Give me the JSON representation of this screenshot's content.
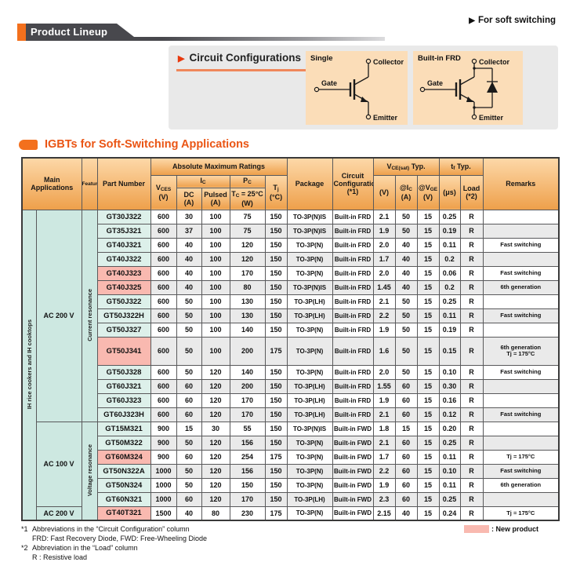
{
  "banner": {
    "title": "Product Lineup",
    "top_right": "For soft switching",
    "accent_color": "#f3701d",
    "bar_color": "#48484d"
  },
  "circuit_section": {
    "title": "Circuit Configurations",
    "diagrams": [
      {
        "label": "Single",
        "collector": "Collector",
        "gate": "Gate",
        "emitter": "Emitter"
      },
      {
        "label": "Built-in FRD",
        "collector": "Collector",
        "gate": "Gate",
        "emitter": "Emitter"
      }
    ]
  },
  "sections": {
    "igbt_table_title": "IGBTs for Soft-Switching Applications"
  },
  "table": {
    "headers": {
      "main_applications": "Main\nApplications",
      "features": "Features",
      "part_number": "Part Number",
      "abs_max_ratings": "Absolute Maximum Ratings",
      "package": "Package",
      "circuit_config": "Circuit\nConfiguration\n(*1)",
      "remarks": "Remarks",
      "vces": {
        "base": "V",
        "sub": "CES",
        "unit": "(V)"
      },
      "ic_group": {
        "base": "I",
        "sub": "C"
      },
      "ic_dc": {
        "line1": "DC",
        "unit": "(A)"
      },
      "ic_pulsed": {
        "line1": "Pulsed",
        "unit": "(A)"
      },
      "pc_group": {
        "base": "P",
        "sub": "C"
      },
      "pc_cond": {
        "base": "T",
        "sub": "C",
        "rest": " = 25°C",
        "unit": "(W)"
      },
      "tj": {
        "base": "T",
        "sub": "j",
        "unit": "(°C)"
      },
      "vce_sat": {
        "base": "V",
        "sub": "CE(sat)",
        "rest": " Typ."
      },
      "vce_v": "(V)",
      "at_ic": {
        "base": "@I",
        "sub": "C",
        "unit": "(A)"
      },
      "at_vge": {
        "base": "@V",
        "sub": "GE",
        "unit": "(V)"
      },
      "tf": {
        "base": "t",
        "sub": "f",
        "rest": " Typ."
      },
      "tf_us": "(μs)",
      "load": {
        "line1": "Load",
        "line2": "(*2)"
      }
    },
    "groups": {
      "application": "IH rice cookers and IH cooktops",
      "sections": [
        {
          "voltage": "AC 200 V",
          "feature": "Current resonance",
          "rows": 14,
          "feature_rows": 14
        },
        {
          "voltage": "AC 100 V",
          "feature": "Voltage resonance",
          "rows": 6,
          "feature_rows": 7
        },
        {
          "voltage": "AC 200 V",
          "feature": null,
          "rows": 1
        }
      ]
    },
    "rows": [
      {
        "part": "GT30J322",
        "new": false,
        "tall": false,
        "vces": "600",
        "dc": "30",
        "pulsed": "100",
        "pc": "75",
        "tj": "150",
        "pkg": "TO-3P(N)IS",
        "cfg": "Built-in FRD",
        "vce": "2.1",
        "ic": "50",
        "vge": "15",
        "tf": "0.25",
        "load": "R",
        "rem": ""
      },
      {
        "part": "GT35J321",
        "new": false,
        "tall": false,
        "vces": "600",
        "dc": "37",
        "pulsed": "100",
        "pc": "75",
        "tj": "150",
        "pkg": "TO-3P(N)IS",
        "cfg": "Built-in FRD",
        "vce": "1.9",
        "ic": "50",
        "vge": "15",
        "tf": "0.19",
        "load": "R",
        "rem": ""
      },
      {
        "part": "GT40J321",
        "new": false,
        "tall": false,
        "vces": "600",
        "dc": "40",
        "pulsed": "100",
        "pc": "120",
        "tj": "150",
        "pkg": "TO-3P(N)",
        "cfg": "Built-in FRD",
        "vce": "2.0",
        "ic": "40",
        "vge": "15",
        "tf": "0.11",
        "load": "R",
        "rem": "Fast switching"
      },
      {
        "part": "GT40J322",
        "new": false,
        "tall": false,
        "vces": "600",
        "dc": "40",
        "pulsed": "100",
        "pc": "120",
        "tj": "150",
        "pkg": "TO-3P(N)",
        "cfg": "Built-in FRD",
        "vce": "1.7",
        "ic": "40",
        "vge": "15",
        "tf": "0.2",
        "load": "R",
        "rem": ""
      },
      {
        "part": "GT40J323",
        "new": true,
        "tall": false,
        "vces": "600",
        "dc": "40",
        "pulsed": "100",
        "pc": "170",
        "tj": "150",
        "pkg": "TO-3P(N)",
        "cfg": "Built-in FRD",
        "vce": "2.0",
        "ic": "40",
        "vge": "15",
        "tf": "0.06",
        "load": "R",
        "rem": "Fast switching"
      },
      {
        "part": "GT40J325",
        "new": true,
        "tall": false,
        "vces": "600",
        "dc": "40",
        "pulsed": "100",
        "pc": "80",
        "tj": "150",
        "pkg": "TO-3P(N)IS",
        "cfg": "Built-in FRD",
        "vce": "1.45",
        "ic": "40",
        "vge": "15",
        "tf": "0.2",
        "load": "R",
        "rem": "6th generation"
      },
      {
        "part": "GT50J322",
        "new": false,
        "tall": false,
        "vces": "600",
        "dc": "50",
        "pulsed": "100",
        "pc": "130",
        "tj": "150",
        "pkg": "TO-3P(LH)",
        "cfg": "Built-in FRD",
        "vce": "2.1",
        "ic": "50",
        "vge": "15",
        "tf": "0.25",
        "load": "R",
        "rem": ""
      },
      {
        "part": "GT50J322H",
        "new": false,
        "tall": false,
        "vces": "600",
        "dc": "50",
        "pulsed": "100",
        "pc": "130",
        "tj": "150",
        "pkg": "TO-3P(LH)",
        "cfg": "Built-in FRD",
        "vce": "2.2",
        "ic": "50",
        "vge": "15",
        "tf": "0.11",
        "load": "R",
        "rem": "Fast switching"
      },
      {
        "part": "GT50J327",
        "new": false,
        "tall": false,
        "vces": "600",
        "dc": "50",
        "pulsed": "100",
        "pc": "140",
        "tj": "150",
        "pkg": "TO-3P(N)",
        "cfg": "Built-in FRD",
        "vce": "1.9",
        "ic": "50",
        "vge": "15",
        "tf": "0.19",
        "load": "R",
        "rem": ""
      },
      {
        "part": "GT50J341",
        "new": true,
        "tall": true,
        "vces": "600",
        "dc": "50",
        "pulsed": "100",
        "pc": "200",
        "tj": "175",
        "pkg": "TO-3P(N)",
        "cfg": "Built-in FRD",
        "vce": "1.6",
        "ic": "50",
        "vge": "15",
        "tf": "0.15",
        "load": "R",
        "rem": "6th generation\nTj = 175°C"
      },
      {
        "part": "GT50J328",
        "new": false,
        "tall": false,
        "vces": "600",
        "dc": "50",
        "pulsed": "120",
        "pc": "140",
        "tj": "150",
        "pkg": "TO-3P(N)",
        "cfg": "Built-in FRD",
        "vce": "2.0",
        "ic": "50",
        "vge": "15",
        "tf": "0.10",
        "load": "R",
        "rem": "Fast switching"
      },
      {
        "part": "GT60J321",
        "new": false,
        "tall": false,
        "vces": "600",
        "dc": "60",
        "pulsed": "120",
        "pc": "200",
        "tj": "150",
        "pkg": "TO-3P(LH)",
        "cfg": "Built-in FRD",
        "vce": "1.55",
        "ic": "60",
        "vge": "15",
        "tf": "0.30",
        "load": "R",
        "rem": ""
      },
      {
        "part": "GT60J323",
        "new": false,
        "tall": false,
        "vces": "600",
        "dc": "60",
        "pulsed": "120",
        "pc": "170",
        "tj": "150",
        "pkg": "TO-3P(LH)",
        "cfg": "Built-in FRD",
        "vce": "1.9",
        "ic": "60",
        "vge": "15",
        "tf": "0.16",
        "load": "R",
        "rem": ""
      },
      {
        "part": "GT60J323H",
        "new": false,
        "tall": false,
        "vces": "600",
        "dc": "60",
        "pulsed": "120",
        "pc": "170",
        "tj": "150",
        "pkg": "TO-3P(LH)",
        "cfg": "Built-in FRD",
        "vce": "2.1",
        "ic": "60",
        "vge": "15",
        "tf": "0.12",
        "load": "R",
        "rem": "Fast switching"
      },
      {
        "part": "GT15M321",
        "new": false,
        "tall": false,
        "vces": "900",
        "dc": "15",
        "pulsed": "30",
        "pc": "55",
        "tj": "150",
        "pkg": "TO-3P(N)IS",
        "cfg": "Built-in FWD",
        "vce": "1.8",
        "ic": "15",
        "vge": "15",
        "tf": "0.20",
        "load": "R",
        "rem": ""
      },
      {
        "part": "GT50M322",
        "new": false,
        "tall": false,
        "vces": "900",
        "dc": "50",
        "pulsed": "120",
        "pc": "156",
        "tj": "150",
        "pkg": "TO-3P(N)",
        "cfg": "Built-in FWD",
        "vce": "2.1",
        "ic": "60",
        "vge": "15",
        "tf": "0.25",
        "load": "R",
        "rem": ""
      },
      {
        "part": "GT60M324",
        "new": true,
        "tall": false,
        "vces": "900",
        "dc": "60",
        "pulsed": "120",
        "pc": "254",
        "tj": "175",
        "pkg": "TO-3P(N)",
        "cfg": "Built-in FWD",
        "vce": "1.7",
        "ic": "60",
        "vge": "15",
        "tf": "0.11",
        "load": "R",
        "rem": "Tj = 175°C"
      },
      {
        "part": "GT50N322A",
        "new": false,
        "tall": false,
        "vces": "1000",
        "dc": "50",
        "pulsed": "120",
        "pc": "156",
        "tj": "150",
        "pkg": "TO-3P(N)",
        "cfg": "Built-in FWD",
        "vce": "2.2",
        "ic": "60",
        "vge": "15",
        "tf": "0.10",
        "load": "R",
        "rem": "Fast switching"
      },
      {
        "part": "GT50N324",
        "new": false,
        "tall": false,
        "vces": "1000",
        "dc": "50",
        "pulsed": "120",
        "pc": "150",
        "tj": "150",
        "pkg": "TO-3P(N)",
        "cfg": "Built-in FWD",
        "vce": "1.9",
        "ic": "60",
        "vge": "15",
        "tf": "0.11",
        "load": "R",
        "rem": "6th generation"
      },
      {
        "part": "GT60N321",
        "new": false,
        "tall": false,
        "vces": "1000",
        "dc": "60",
        "pulsed": "120",
        "pc": "170",
        "tj": "150",
        "pkg": "TO-3P(LH)",
        "cfg": "Built-in FWD",
        "vce": "2.3",
        "ic": "60",
        "vge": "15",
        "tf": "0.25",
        "load": "R",
        "rem": ""
      },
      {
        "part": "GT40T321",
        "new": true,
        "tall": false,
        "vces": "1500",
        "dc": "40",
        "pulsed": "80",
        "pc": "230",
        "tj": "175",
        "pkg": "TO-3P(N)",
        "cfg": "Built-in FWD",
        "vce": "2.15",
        "ic": "40",
        "vge": "15",
        "tf": "0.24",
        "load": "R",
        "rem": "Tj = 175°C"
      }
    ]
  },
  "notes": {
    "n1_label": "*1",
    "n1_line1": "Abbreviations in the “Circuit Configuration” column",
    "n1_line2": "FRD: Fast Recovery Diode, FWD: Free-Wheeling Diode",
    "n2_label": "*2",
    "n2_line1": "Abbreviation in the “Load” column",
    "n2_line2": "R : Resistive load"
  },
  "legend": {
    "new_product_label": ": New product",
    "new_product_color": "#f9b9b0"
  }
}
